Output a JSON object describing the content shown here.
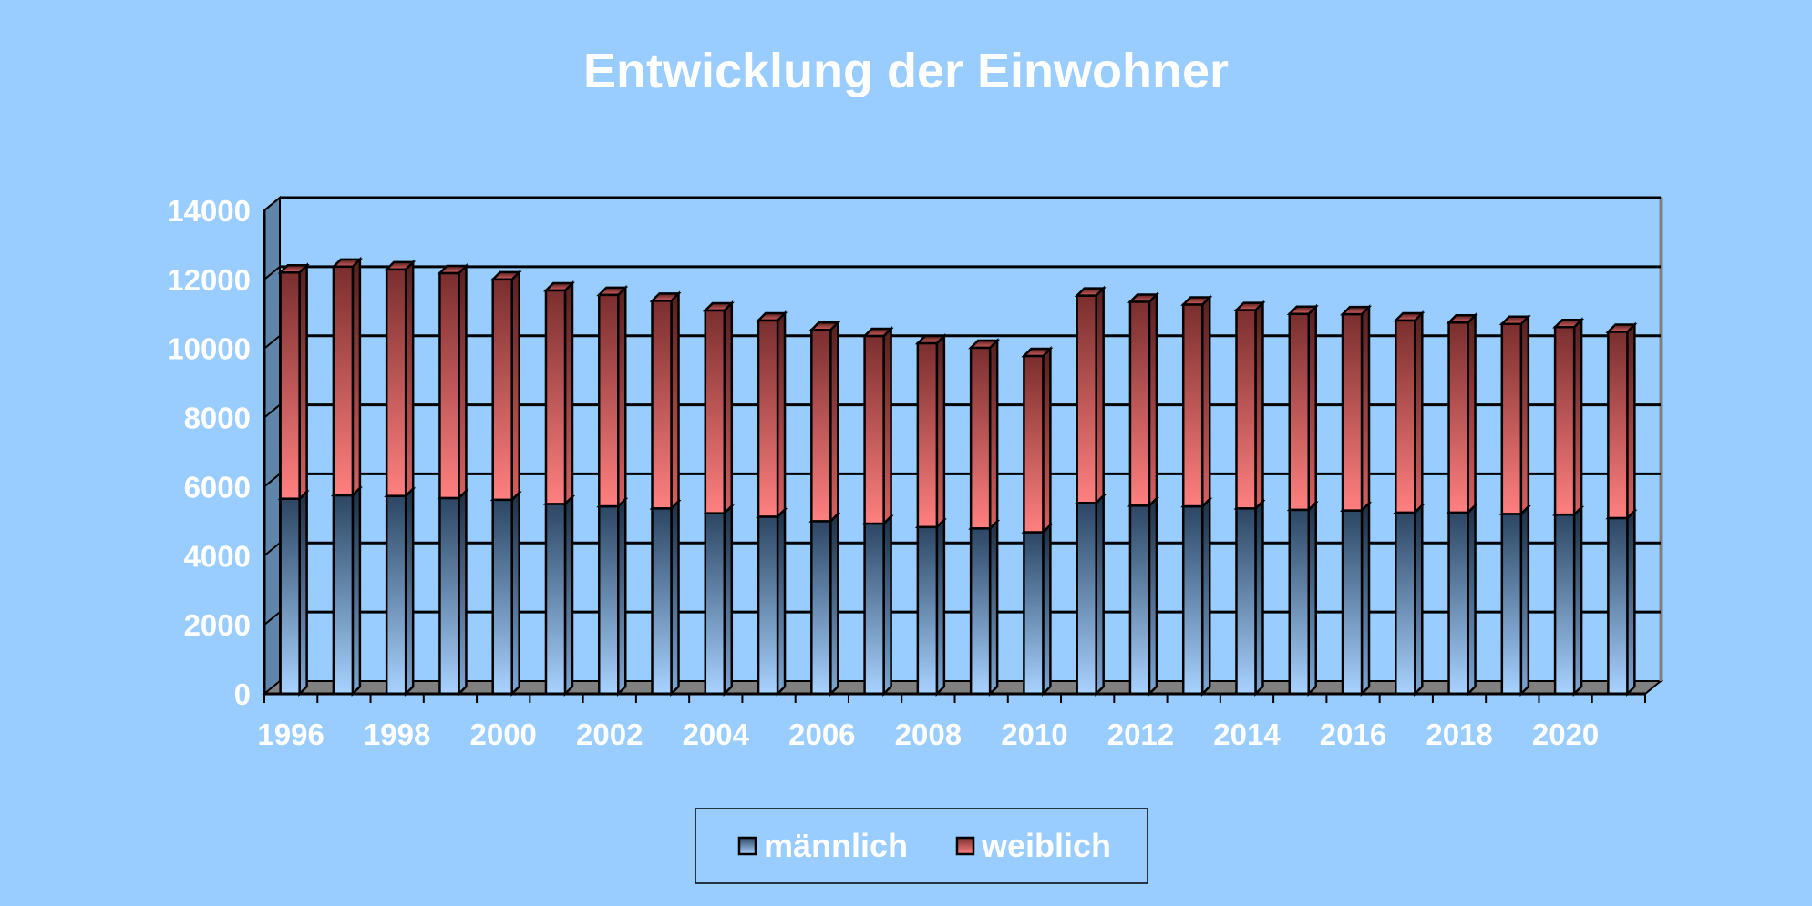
{
  "chart_data": {
    "type": "bar",
    "stacked": true,
    "three_d": true,
    "title": "Entwicklung der Einwohner",
    "xlabel": "",
    "ylabel": "",
    "ylim": [
      0,
      14000
    ],
    "y_ticks": [
      "0",
      "2000",
      "4000",
      "6000",
      "8000",
      "10000",
      "12000",
      "14000"
    ],
    "categories": [
      "1996",
      "1997",
      "1998",
      "1999",
      "2000",
      "2001",
      "2002",
      "2003",
      "2004",
      "2005",
      "2006",
      "2007",
      "2008",
      "2009",
      "2010",
      "2011",
      "2012",
      "2013",
      "2014",
      "2015",
      "2016",
      "2017",
      "2018",
      "2019",
      "2020",
      "2021"
    ],
    "x_tick_labels": [
      "1996",
      "1998",
      "2000",
      "2002",
      "2004",
      "2006",
      "2008",
      "2010",
      "2012",
      "2014",
      "2016",
      "2018",
      "2020"
    ],
    "series": [
      {
        "name": "männlich",
        "values": [
          5650,
          5750,
          5730,
          5670,
          5620,
          5500,
          5430,
          5370,
          5230,
          5130,
          5000,
          4930,
          4830,
          4790,
          4680,
          5530,
          5450,
          5430,
          5370,
          5330,
          5310,
          5250,
          5250,
          5210,
          5190,
          5090
        ]
      },
      {
        "name": "weiblich",
        "values": [
          6550,
          6620,
          6560,
          6510,
          6380,
          6180,
          6120,
          6010,
          5870,
          5680,
          5540,
          5430,
          5320,
          5230,
          5100,
          6000,
          5900,
          5840,
          5740,
          5670,
          5680,
          5560,
          5500,
          5500,
          5430,
          5390
        ]
      }
    ],
    "grid": true,
    "legend": {
      "position": "bottom",
      "items": [
        {
          "label": "männlich",
          "color": "#3a5a80"
        },
        {
          "label": "weiblich",
          "color": "#b04848"
        }
      ]
    },
    "colors": {
      "background": "#99ccff",
      "plot_wall": "#99ccff",
      "side_wall": "#5f85ab",
      "floor": "#808080",
      "gridline": "#000000",
      "text": "#ffffff"
    }
  }
}
